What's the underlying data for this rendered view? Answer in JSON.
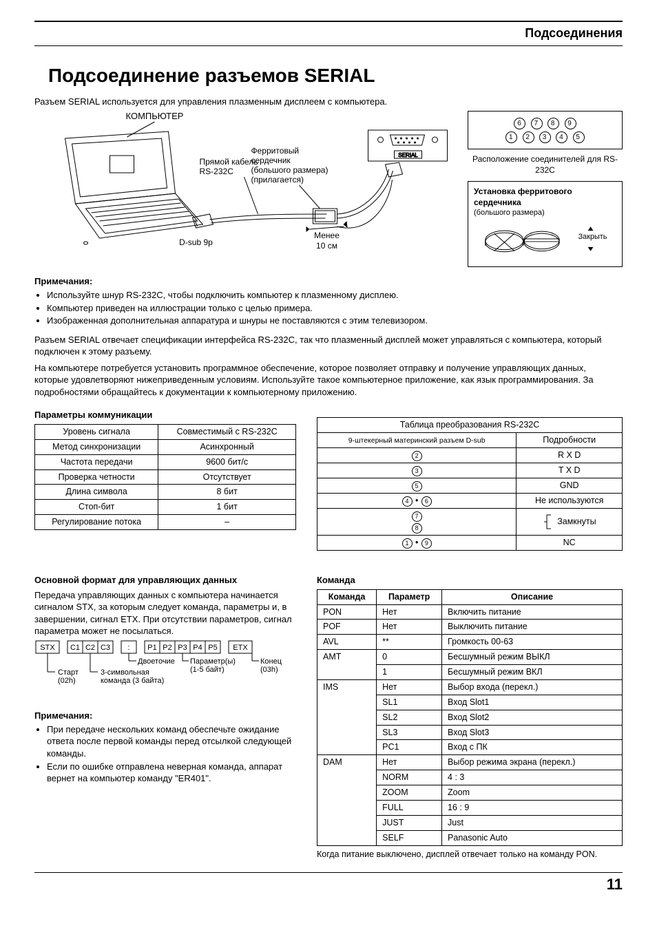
{
  "header": {
    "section": "Подсоединения"
  },
  "title": "Подсоединение разъемов SERIAL",
  "intro": "Разъем SERIAL используется для управления плазменным дисплеем с компьютера.",
  "diagram": {
    "computer": "КОМПЬЮТЕР",
    "ferrite": "Ферритовый сердечник (большого размера) (прилагается)",
    "cable": "Прямой кабель RS-232C",
    "dsub": "D-sub 9p",
    "less": "Менее 10 см",
    "serialLabel": "SERIAL"
  },
  "pinbox": {
    "row1": [
      "6",
      "7",
      "8",
      "9"
    ],
    "row2": [
      "1",
      "2",
      "3",
      "4",
      "5"
    ],
    "caption": "Расположение соединителей для RS-232C"
  },
  "ferriteBox": {
    "title": "Установка ферритового сердечника",
    "sub": "(большого размера)",
    "close": "Закрыть"
  },
  "notes1": {
    "title": "Примечания:",
    "items": [
      "Используйте шнур RS-232C, чтобы подключить компьютер к плазменному дисплею.",
      "Компьютер приведен на иллюстрации только с целью примера.",
      "Изображенная дополнительная аппаратура и шнуры не поставляются с этим телевизором."
    ]
  },
  "para1": "Разъем SERIAL отвечает спецификации интерфейса RS-232C, так что плазменный дисплей может управляться с компьютера, который подключен к этому разъему.",
  "para2": "На компьютере потребуется установить программное обеспечение, которое позволяет отправку и получение управляющих данных, которые удовлетворяют нижеприведенным условиям. Используйте такое компьютерное приложение, как язык программирования. За подробностями обращайтесь к документации к компьютерному приложению.",
  "commParams": {
    "title": "Параметры коммуникации",
    "rows": [
      [
        "Уровень сигнала",
        "Совместимый с RS-232C"
      ],
      [
        "Метод синхронизации",
        "Асинхронный"
      ],
      [
        "Частота передачи",
        "9600 бит/с"
      ],
      [
        "Проверка четности",
        "Отсутствует"
      ],
      [
        "Длина символа",
        "8 бит"
      ],
      [
        "Стоп-бит",
        "1 бит"
      ],
      [
        "Регулирование потока",
        "–"
      ]
    ]
  },
  "convTable": {
    "title": "Таблица преобразования RS-232C",
    "header": [
      "9-штекерный материнский разъем D-sub",
      "Подробности"
    ],
    "rows": [
      {
        "pins": [
          "2"
        ],
        "detail": "R X D"
      },
      {
        "pins": [
          "3"
        ],
        "detail": "T X D"
      },
      {
        "pins": [
          "5"
        ],
        "detail": "GND"
      },
      {
        "pins": [
          "4",
          "6"
        ],
        "sep": "•",
        "detail": "Не используются"
      },
      {
        "pins": [
          "7",
          "8"
        ],
        "stack": true,
        "detail": "Замкнуты",
        "bracket": true
      },
      {
        "pins": [
          "1",
          "9"
        ],
        "sep": "•",
        "detail": "NC"
      }
    ]
  },
  "format": {
    "title": "Основной формат для управляющих данных",
    "text": "Передача управляющих данных с компьютера начинается сигналом STX, за которым следует команда, параметры и, в завершении, сигнал ETX. При отсутствии параметров, сигнал параметра может не посылаться.",
    "boxes": {
      "stx": "STX",
      "c": [
        "C1",
        "C2",
        "C3"
      ],
      "colon": ":",
      "p": [
        "P1",
        "P2",
        "P3",
        "P4",
        "P5"
      ],
      "etx": "ETX"
    },
    "labels": {
      "start": "Старт (02h)",
      "cmd": "3-символьная команда (3 байта)",
      "colon": "Двоеточие",
      "param": "Параметр(ы) (1-5 байт)",
      "end": "Конец (03h)"
    }
  },
  "notes2": {
    "title": "Примечания:",
    "items": [
      "При передаче нескольких команд обеспечьте ожидание ответа после первой команды перед отсылкой следующей команды.",
      "Если по ошибке отправлена неверная команда, аппарат вернет на компьютер команду \"ER401\"."
    ]
  },
  "commands": {
    "title": "Команда",
    "header": [
      "Команда",
      "Параметр",
      "Описание"
    ],
    "rows": [
      {
        "cmd": "PON",
        "params": [
          [
            "Нет",
            "Включить питание"
          ]
        ]
      },
      {
        "cmd": "POF",
        "params": [
          [
            "Нет",
            "Выключить питание"
          ]
        ]
      },
      {
        "cmd": "AVL",
        "params": [
          [
            "**",
            "Громкость 00-63"
          ]
        ]
      },
      {
        "cmd": "AMT",
        "params": [
          [
            "0",
            "Бесшумный режим ВЫКЛ"
          ],
          [
            "1",
            "Бесшумный режим ВКЛ"
          ]
        ]
      },
      {
        "cmd": "IMS",
        "params": [
          [
            "Нет",
            "Выбор входа (перекл.)"
          ],
          [
            "SL1",
            "Вход Slot1"
          ],
          [
            "SL2",
            "Вход Slot2"
          ],
          [
            "SL3",
            "Вход Slot3"
          ],
          [
            "PC1",
            "Вход с ПК"
          ]
        ]
      },
      {
        "cmd": "DAM",
        "params": [
          [
            "Нет",
            "Выбор режима экрана (перекл.)"
          ],
          [
            "NORM",
            "4 : 3"
          ],
          [
            "ZOOM",
            "Zoom"
          ],
          [
            "FULL",
            "16 : 9"
          ],
          [
            "JUST",
            "Just"
          ],
          [
            "SELF",
            "Panasonic Auto"
          ]
        ]
      }
    ],
    "note": "Когда питание выключено, дисплей отвечает только на команду PON."
  },
  "pageNumber": "11"
}
